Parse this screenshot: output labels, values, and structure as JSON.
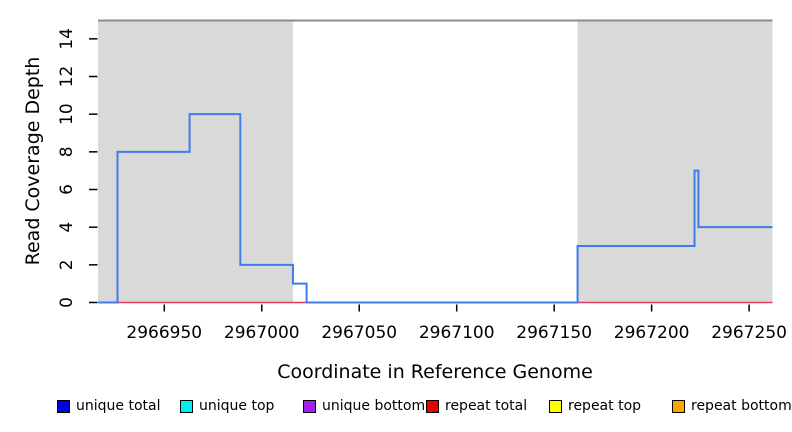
{
  "chart_data": {
    "type": "line",
    "subtype": "step-coverage",
    "title": "",
    "xlabel": "Coordinate in Reference Genome",
    "ylabel": "Read Coverage Depth",
    "xlim": [
      2966916,
      2967262
    ],
    "ylim": [
      0,
      15
    ],
    "x_ticks": [
      2966950,
      2967000,
      2967050,
      2967100,
      2967150,
      2967200,
      2967250
    ],
    "y_ticks": [
      0,
      2,
      4,
      6,
      8,
      10,
      12,
      14
    ],
    "grid": false,
    "legend_position": "bottom",
    "shaded_regions": {
      "color": "#d9d9d9",
      "ranges": [
        {
          "from": 2966916,
          "to": 2967016
        },
        {
          "from": 2967162,
          "to": 2967262
        }
      ]
    },
    "boundary_line": {
      "depth": 15,
      "color": "#8c8c8c"
    },
    "series": [
      {
        "name": "unique total",
        "color": "#3e7de8",
        "segments": [
          {
            "from": 2966916,
            "to": 2966926,
            "depth": 0
          },
          {
            "from": 2966926,
            "to": 2966963,
            "depth": 8
          },
          {
            "from": 2966963,
            "to": 2966989,
            "depth": 10
          },
          {
            "from": 2966989,
            "to": 2967016,
            "depth": 2
          },
          {
            "from": 2967016,
            "to": 2967023,
            "depth": 1
          },
          {
            "from": 2967023,
            "to": 2967162,
            "depth": 0
          },
          {
            "from": 2967162,
            "to": 2967222,
            "depth": 3
          },
          {
            "from": 2967222,
            "to": 2967224,
            "depth": 7
          },
          {
            "from": 2967224,
            "to": 2967262,
            "depth": 4
          }
        ]
      },
      {
        "name": "repeat total",
        "color": "#e23b5c",
        "segments": [
          {
            "from": 2966916,
            "to": 2967262,
            "depth": 0
          }
        ]
      }
    ],
    "legend": {
      "items": [
        {
          "label": "unique total",
          "color": "#0000EE"
        },
        {
          "label": "unique top",
          "color": "#00EEEE"
        },
        {
          "label": "unique bottom",
          "color": "#A020F0"
        },
        {
          "label": "repeat total",
          "color": "#EE0000"
        },
        {
          "label": "repeat top",
          "color": "#FFFF00"
        },
        {
          "label": "repeat bottom",
          "color": "#FFA500"
        }
      ]
    }
  }
}
